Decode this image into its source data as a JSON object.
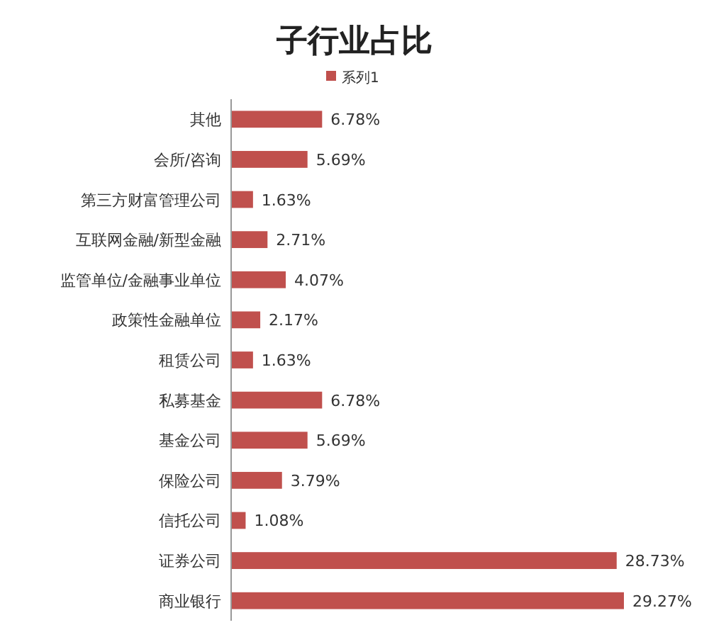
{
  "chart_data": {
    "type": "bar",
    "orientation": "horizontal",
    "title": "子行业占比",
    "legend": "top",
    "categories": [
      "其他",
      "会所/咨询",
      "第三方财富管理公司",
      "互联网金融/新型金融",
      "监管单位/金融事业单位",
      "政策性金融单位",
      "租赁公司",
      "私募基金",
      "基金公司",
      "保险公司",
      "信托公司",
      "证券公司",
      "商业银行"
    ],
    "series": [
      {
        "name": "系列1",
        "color": "#c0504d",
        "values": [
          6.78,
          5.69,
          1.63,
          2.71,
          4.07,
          2.17,
          1.63,
          6.78,
          5.69,
          3.79,
          1.08,
          28.73,
          29.27
        ],
        "value_labels": [
          "6.78%",
          "5.69%",
          "1.63%",
          "2.71%",
          "4.07%",
          "2.17%",
          "1.63%",
          "6.78%",
          "5.69%",
          "3.79%",
          "1.08%",
          "28.73%",
          "29.27%"
        ]
      }
    ]
  }
}
